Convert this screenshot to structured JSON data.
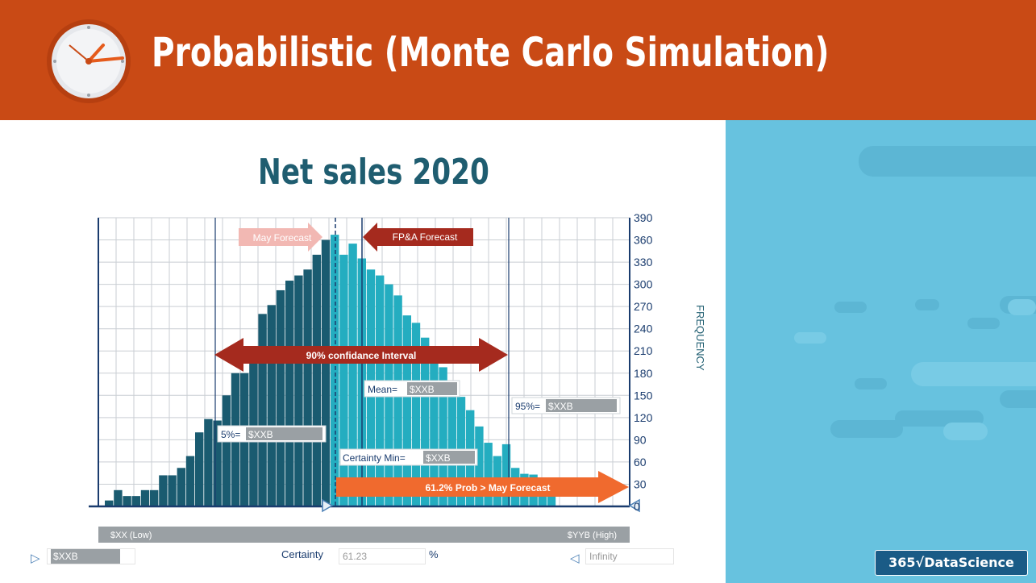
{
  "slide": {
    "title": "Probabilistic (Monte Carlo Simulation)",
    "brand": "365√DataScience"
  },
  "chart_data": {
    "type": "bar",
    "title": "Net sales 2020",
    "ylabel": "FREQUENCY",
    "ylim": [
      0,
      390
    ],
    "yticks": [
      0,
      30,
      60,
      90,
      120,
      150,
      180,
      210,
      240,
      270,
      300,
      330,
      360,
      390
    ],
    "x_low_label": "$XX (Low)",
    "x_high_label": "$YYB (High)",
    "values": [
      8,
      22,
      14,
      14,
      22,
      22,
      42,
      42,
      52,
      68,
      100,
      118,
      116,
      150,
      180,
      180,
      210,
      260,
      272,
      292,
      305,
      312,
      320,
      340,
      360,
      367,
      340,
      355,
      335,
      320,
      312,
      300,
      285,
      258,
      248,
      228,
      208,
      188,
      168,
      148,
      130,
      108,
      86,
      68,
      84,
      52,
      44,
      43,
      36,
      24
    ],
    "series_colors": {
      "lower": "#1a5b70",
      "upper": "#24adc0"
    },
    "split_index": 25,
    "annotations": {
      "may_forecast": "May Forecast",
      "fpa_forecast": "FP&A Forecast",
      "confidence_interval": "90% confidance Interval",
      "mean": "Mean=",
      "mean_value": "$XXB",
      "p95": "95%=",
      "p95_value": "$XXB",
      "p5": "5%=",
      "p5_value": "$XXB",
      "certainty_min": "Certainty Min=",
      "certainty_min_value": "$XXB",
      "prob": "61.2% Prob > May Forecast"
    }
  },
  "controls": {
    "left_value": "$XXB",
    "certainty_label": "Certainty",
    "certainty_value": "61.23",
    "percent": "%",
    "right_value": "Infinity"
  },
  "colors": {
    "header": "#c94a15",
    "title_text": "#1f5d70",
    "dark_red_arrow": "#a52a1e",
    "pink_arrow": "#f2b8b3",
    "orange_arrow": "#f06a2e"
  }
}
